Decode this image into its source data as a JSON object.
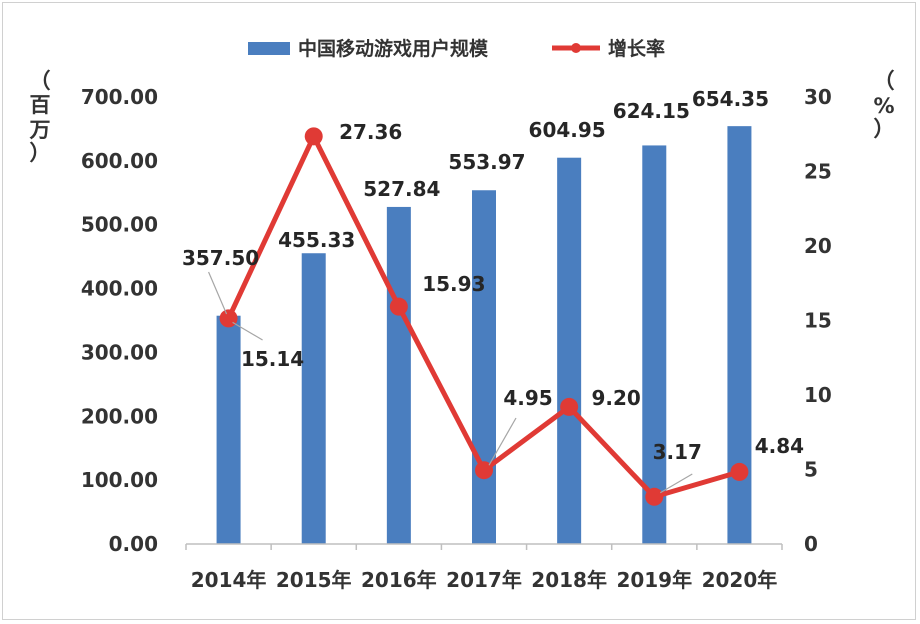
{
  "chart_data": {
    "type": "bar",
    "categories": [
      "2014年",
      "2015年",
      "2016年",
      "2017年",
      "2018年",
      "2019年",
      "2020年"
    ],
    "series": [
      {
        "name": "中国移动游戏用户规模",
        "type": "bar",
        "axis": "left",
        "color": "#4a7ebf",
        "values": [
          357.5,
          455.33,
          527.84,
          553.97,
          604.95,
          624.15,
          654.35
        ],
        "labels": [
          "357.50",
          "455.33",
          "527.84",
          "553.97",
          "604.95",
          "624.15",
          "654.35"
        ]
      },
      {
        "name": "增长率",
        "type": "line",
        "axis": "right",
        "color": "#e03a35",
        "values": [
          15.14,
          27.36,
          15.93,
          4.95,
          9.2,
          3.17,
          4.84
        ],
        "labels": [
          "15.14",
          "27.36",
          "15.93",
          "4.95",
          "9.20",
          "3.17",
          "4.84"
        ]
      }
    ],
    "y_left": {
      "ticks": [
        "0.00",
        "100.00",
        "200.00",
        "300.00",
        "400.00",
        "500.00",
        "600.00",
        "700.00"
      ],
      "ylim": [
        0,
        700
      ],
      "unit_chars": [
        "（",
        "百",
        "万",
        "）"
      ]
    },
    "y_right": {
      "ticks": [
        "0",
        "5",
        "10",
        "15",
        "20",
        "25",
        "30"
      ],
      "ylim": [
        0,
        30
      ],
      "unit_chars": [
        "（",
        "%",
        "）"
      ]
    },
    "legend_position": "top-center",
    "grid": false
  }
}
